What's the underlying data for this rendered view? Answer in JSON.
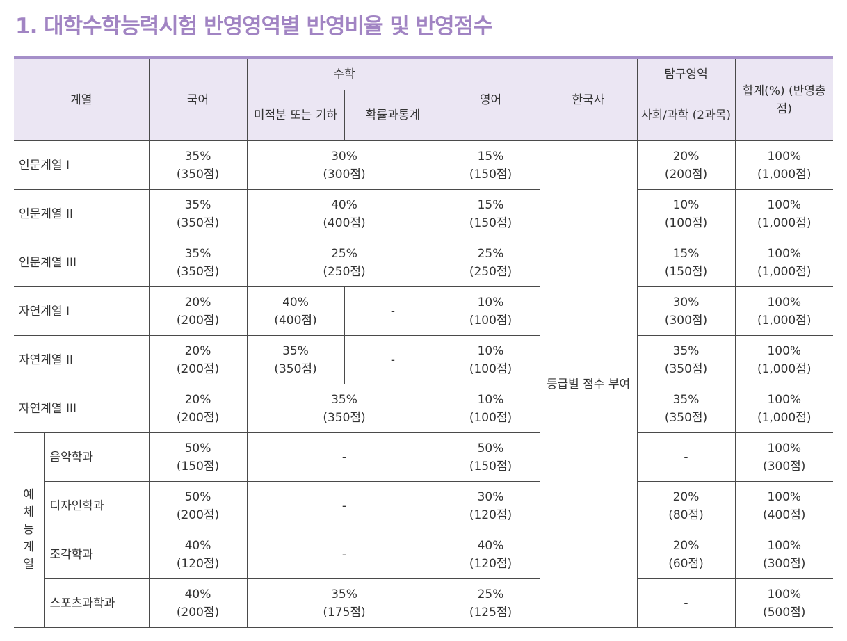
{
  "title": "1. 대학수학능력시험 반영영역별 반영비율 및 반영점수",
  "colors": {
    "title": "#a184c3",
    "header_bg": "#ebe6f3",
    "rule": "#a58fc9"
  },
  "header": {
    "track": "계열",
    "korean": "국어",
    "math": "수학",
    "math_calc_line1": "미적분",
    "math_calc_line2": "또는 기하",
    "math_stats": "확률과통계",
    "english": "영어",
    "history": "한국사",
    "inquiry": "탐구영역",
    "inquiry_sub_line1": "사회/과학",
    "inquiry_sub_line2": "(2과목)",
    "total_line1": "합계(%)",
    "total_line2": "(반영총점)"
  },
  "history_note": "등급별 점수 부여",
  "arts_group_chars": [
    "예",
    "체",
    "능",
    "계",
    "열"
  ],
  "rows": [
    {
      "track": "인문계열 I",
      "korean": [
        "35%",
        "(350점)"
      ],
      "math": [
        "30%",
        "(300점)"
      ],
      "english": [
        "15%",
        "(150점)"
      ],
      "inquiry": [
        "20%",
        "(200점)"
      ],
      "total": [
        "100%",
        "(1,000점)"
      ]
    },
    {
      "track": "인문계열 II",
      "korean": [
        "35%",
        "(350점)"
      ],
      "math": [
        "40%",
        "(400점)"
      ],
      "english": [
        "15%",
        "(150점)"
      ],
      "inquiry": [
        "10%",
        "(100점)"
      ],
      "total": [
        "100%",
        "(1,000점)"
      ]
    },
    {
      "track": "인문계열 III",
      "korean": [
        "35%",
        "(350점)"
      ],
      "math": [
        "25%",
        "(250점)"
      ],
      "english": [
        "25%",
        "(250점)"
      ],
      "inquiry": [
        "15%",
        "(150점)"
      ],
      "total": [
        "100%",
        "(1,000점)"
      ]
    },
    {
      "track": "자연계열 I",
      "korean": [
        "20%",
        "(200점)"
      ],
      "math_calc": [
        "40%",
        "(400점)"
      ],
      "math_stats": "-",
      "english": [
        "10%",
        "(100점)"
      ],
      "inquiry": [
        "30%",
        "(300점)"
      ],
      "total": [
        "100%",
        "(1,000점)"
      ]
    },
    {
      "track": "자연계열 II",
      "korean": [
        "20%",
        "(200점)"
      ],
      "math_calc": [
        "35%",
        "(350점)"
      ],
      "math_stats": "-",
      "english": [
        "10%",
        "(100점)"
      ],
      "inquiry": [
        "35%",
        "(350점)"
      ],
      "total": [
        "100%",
        "(1,000점)"
      ]
    },
    {
      "track": "자연계열 III",
      "korean": [
        "20%",
        "(200점)"
      ],
      "math": [
        "35%",
        "(350점)"
      ],
      "english": [
        "10%",
        "(100점)"
      ],
      "inquiry": [
        "35%",
        "(350점)"
      ],
      "total": [
        "100%",
        "(1,000점)"
      ]
    },
    {
      "track": "음악학과",
      "korean": [
        "50%",
        "(150점)"
      ],
      "math": "-",
      "english": [
        "50%",
        "(150점)"
      ],
      "inquiry": "-",
      "total": [
        "100%",
        "(300점)"
      ]
    },
    {
      "track": "디자인학과",
      "korean": [
        "50%",
        "(200점)"
      ],
      "math": "-",
      "english": [
        "30%",
        "(120점)"
      ],
      "inquiry": [
        "20%",
        "(80점)"
      ],
      "total": [
        "100%",
        "(400점)"
      ]
    },
    {
      "track": "조각학과",
      "korean": [
        "40%",
        "(120점)"
      ],
      "math": "-",
      "english": [
        "40%",
        "(120점)"
      ],
      "inquiry": [
        "20%",
        "(60점)"
      ],
      "total": [
        "100%",
        "(300점)"
      ]
    },
    {
      "track": "스포츠과학과",
      "korean": [
        "40%",
        "(200점)"
      ],
      "math": [
        "35%",
        "(175점)"
      ],
      "english": [
        "25%",
        "(125점)"
      ],
      "inquiry": "-",
      "total": [
        "100%",
        "(500점)"
      ]
    }
  ]
}
